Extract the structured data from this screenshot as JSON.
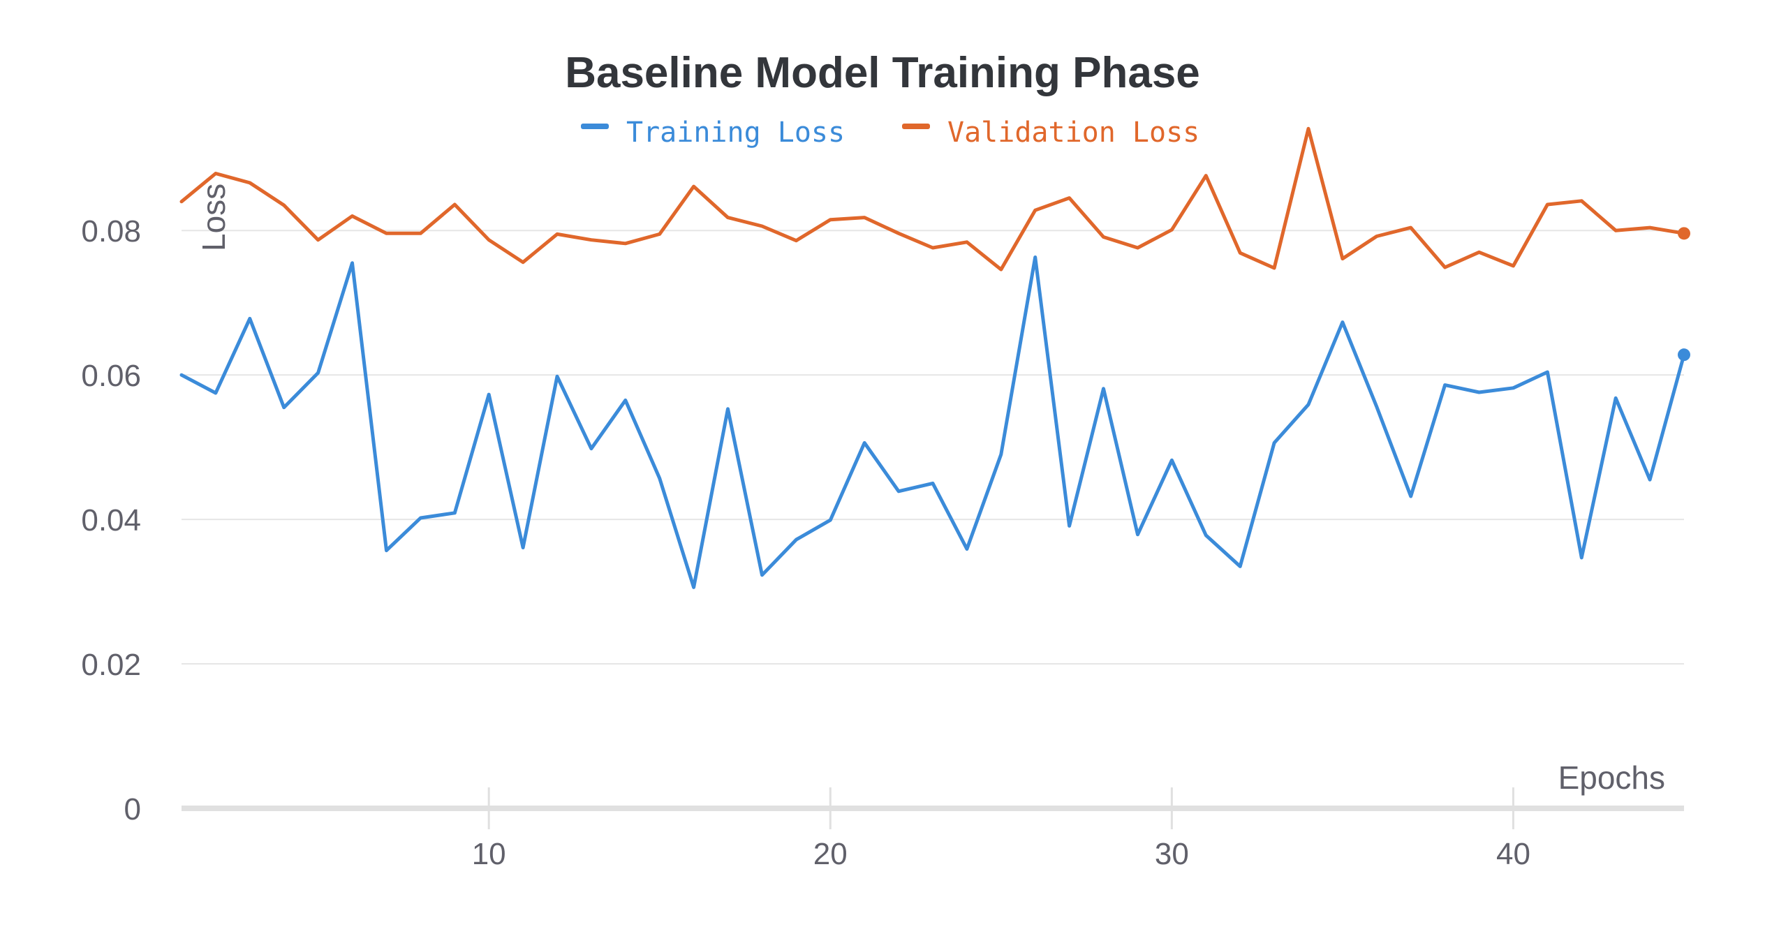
{
  "chart_data": {
    "type": "line",
    "title": "Baseline Model Training Phase",
    "xlabel": "Epochs",
    "ylabel": "Loss",
    "xlim": [
      1,
      45
    ],
    "ylim": [
      0,
      0.095
    ],
    "x_ticks": [
      10,
      20,
      30,
      40
    ],
    "y_ticks": [
      0,
      0.02,
      0.04,
      0.06,
      0.08
    ],
    "y_tick_labels": [
      "0",
      "0.02",
      "0.04",
      "0.06",
      "0.08"
    ],
    "grid": "horizontal",
    "legend_position": "top-center",
    "x": [
      1,
      2,
      3,
      4,
      5,
      6,
      7,
      8,
      9,
      10,
      11,
      12,
      13,
      14,
      15,
      16,
      17,
      18,
      19,
      20,
      21,
      22,
      23,
      24,
      25,
      26,
      27,
      28,
      29,
      30,
      31,
      32,
      33,
      34,
      35,
      36,
      37,
      38,
      39,
      40,
      41,
      42,
      43,
      44,
      45
    ],
    "series": [
      {
        "name": "Training Loss",
        "color": "#3b8bd9",
        "values": [
          0.06,
          0.0575,
          0.0678,
          0.0555,
          0.0603,
          0.0755,
          0.0357,
          0.0402,
          0.0409,
          0.0573,
          0.0361,
          0.0598,
          0.0498,
          0.0565,
          0.0457,
          0.0306,
          0.0553,
          0.0323,
          0.0372,
          0.0399,
          0.0506,
          0.0439,
          0.045,
          0.0359,
          0.049,
          0.0763,
          0.0391,
          0.0581,
          0.0379,
          0.0482,
          0.0378,
          0.0335,
          0.0506,
          0.0559,
          0.0673,
          0.0556,
          0.0432,
          0.0586,
          0.0576,
          0.0582,
          0.0604,
          0.0347,
          0.0568,
          0.0455,
          0.0628
        ]
      },
      {
        "name": "Validation Loss",
        "color": "#e0672b",
        "values": [
          0.084,
          0.0879,
          0.0866,
          0.0835,
          0.0787,
          0.082,
          0.0796,
          0.0796,
          0.0836,
          0.0787,
          0.0756,
          0.0795,
          0.0787,
          0.0782,
          0.0795,
          0.0861,
          0.0818,
          0.0806,
          0.0786,
          0.0815,
          0.0818,
          0.0796,
          0.0776,
          0.0784,
          0.0746,
          0.0828,
          0.0845,
          0.0791,
          0.0776,
          0.0801,
          0.0876,
          0.0769,
          0.0748,
          0.0941,
          0.0761,
          0.0792,
          0.0804,
          0.0749,
          0.077,
          0.0751,
          0.0836,
          0.0841,
          0.08,
          0.0804,
          0.0796
        ]
      }
    ]
  }
}
